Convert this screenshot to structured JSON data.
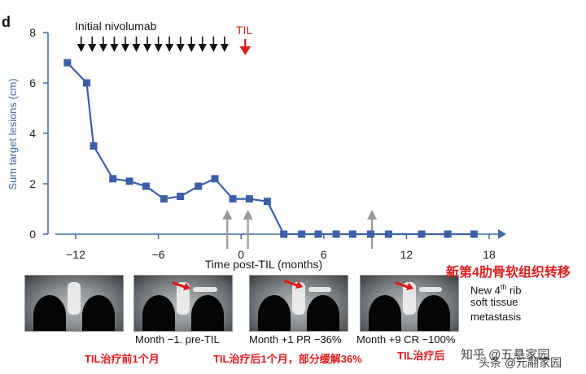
{
  "panel_letter": "d",
  "chart_data": {
    "type": "line",
    "xlabel": "Time post-TIL (months)",
    "ylabel": "Sum target lesions (cm)",
    "xlim": [
      -14,
      18
    ],
    "ylim": [
      0,
      8
    ],
    "x_ticks": [
      -12,
      -6,
      0,
      6,
      12,
      18
    ],
    "y_ticks": [
      0,
      2,
      4,
      6,
      8
    ],
    "x_tick_labels": [
      "−12",
      "−6",
      "0",
      "6",
      "12",
      "18"
    ],
    "y_tick_labels": [
      "0",
      "2",
      "4",
      "6",
      "8"
    ],
    "grid": false,
    "series": [
      {
        "color": "#3d5fa8",
        "marker": "square",
        "points": [
          [
            -12.6,
            6.8
          ],
          [
            -11.2,
            6.0
          ],
          [
            -10.7,
            3.5
          ],
          [
            -9.3,
            2.2
          ],
          [
            -8.1,
            2.1
          ],
          [
            -6.9,
            1.9
          ],
          [
            -5.6,
            1.4
          ],
          [
            -4.4,
            1.5
          ],
          [
            -3.1,
            1.9
          ],
          [
            -1.9,
            2.2
          ],
          [
            -0.6,
            1.4
          ],
          [
            0.6,
            1.4
          ],
          [
            1.9,
            1.3
          ],
          [
            3.1,
            0.0
          ],
          [
            4.4,
            0.0
          ],
          [
            5.6,
            0.0
          ],
          [
            6.9,
            0.0
          ],
          [
            8.1,
            0.0
          ],
          [
            9.4,
            0.0
          ],
          [
            10.7,
            0.0
          ],
          [
            13.1,
            0.0
          ],
          [
            15.0,
            0.0
          ],
          [
            16.9,
            0.0
          ]
        ]
      }
    ],
    "annotations": {
      "nivolumab_label": "Initial nivolumab",
      "nivolumab_arrow_x": [
        -11.6,
        -10.8,
        -10.0,
        -9.2,
        -8.4,
        -7.6,
        -6.8,
        -6.0,
        -5.2,
        -4.4,
        -3.6,
        -2.8,
        -2.0,
        -1.2
      ],
      "til_label": "TIL",
      "til_arrow_x": 0.3,
      "scan_arrow_x": [
        -1.0,
        0.5,
        9.5
      ]
    }
  },
  "scans": [
    {
      "caption": "",
      "cn": "TIL治疗前1个月",
      "has_arrow": false
    },
    {
      "caption": "Month −1. pre-TIL",
      "cn": "",
      "has_arrow": true
    },
    {
      "caption": "Month +1 PR −36%",
      "cn": "TIL治疗后1个月，部分缓解36%",
      "has_arrow": true
    },
    {
      "caption": "Month +9 CR −100%",
      "cn": "TIL治疗后",
      "has_arrow": true
    }
  ],
  "side_note": {
    "cn_title": "新第4肋骨软组织转移",
    "line1_a": "New 4",
    "line1_sup": "th",
    "line1_b": " rib",
    "line2": "soft tissue",
    "line3": "metastasis"
  },
  "watermark": "知乎 @五悬家园",
  "watermark2": "头条 @元翮家园",
  "colors": {
    "series": "#3d5fa8",
    "axis": "#3d6aa6",
    "red": "#d42222",
    "annot_arrow": "#999999"
  }
}
